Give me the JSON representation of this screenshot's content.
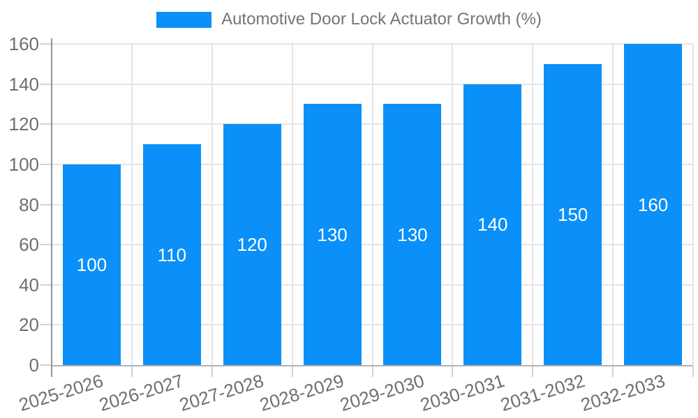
{
  "legend": {
    "label": "Automotive Door Lock Actuator Growth (%)"
  },
  "colors": {
    "bar": "#0a90f8",
    "legend_text": "#757575",
    "axis_label": "#6f6f6f",
    "grid": "#e4e4e4",
    "y_axis_line": "#949494",
    "x_axis_line": "#b3b3b3",
    "tick": "#d2d2d2",
    "value_label": "#ffffff",
    "background": "#ffffff"
  },
  "chart_data": {
    "type": "bar",
    "title": "Automotive Door Lock Actuator Growth (%)",
    "categories": [
      "2025-2026",
      "2026-2027",
      "2027-2028",
      "2028-2029",
      "2029-2030",
      "2030-2031",
      "2031-2032",
      "2032-2033"
    ],
    "values": [
      100,
      110,
      120,
      130,
      130,
      140,
      150,
      160
    ],
    "value_labels": [
      "100",
      "110",
      "120",
      "130",
      "130",
      "140",
      "150",
      "160"
    ],
    "yticks": [
      0,
      20,
      40,
      60,
      80,
      100,
      120,
      140,
      160
    ],
    "ylim": [
      0,
      160
    ],
    "xlabel": "",
    "ylabel": "",
    "grid": true,
    "legend_position": "top-center",
    "bar_value_label_position": "inside-center",
    "x_label_rotation_deg": -17
  }
}
